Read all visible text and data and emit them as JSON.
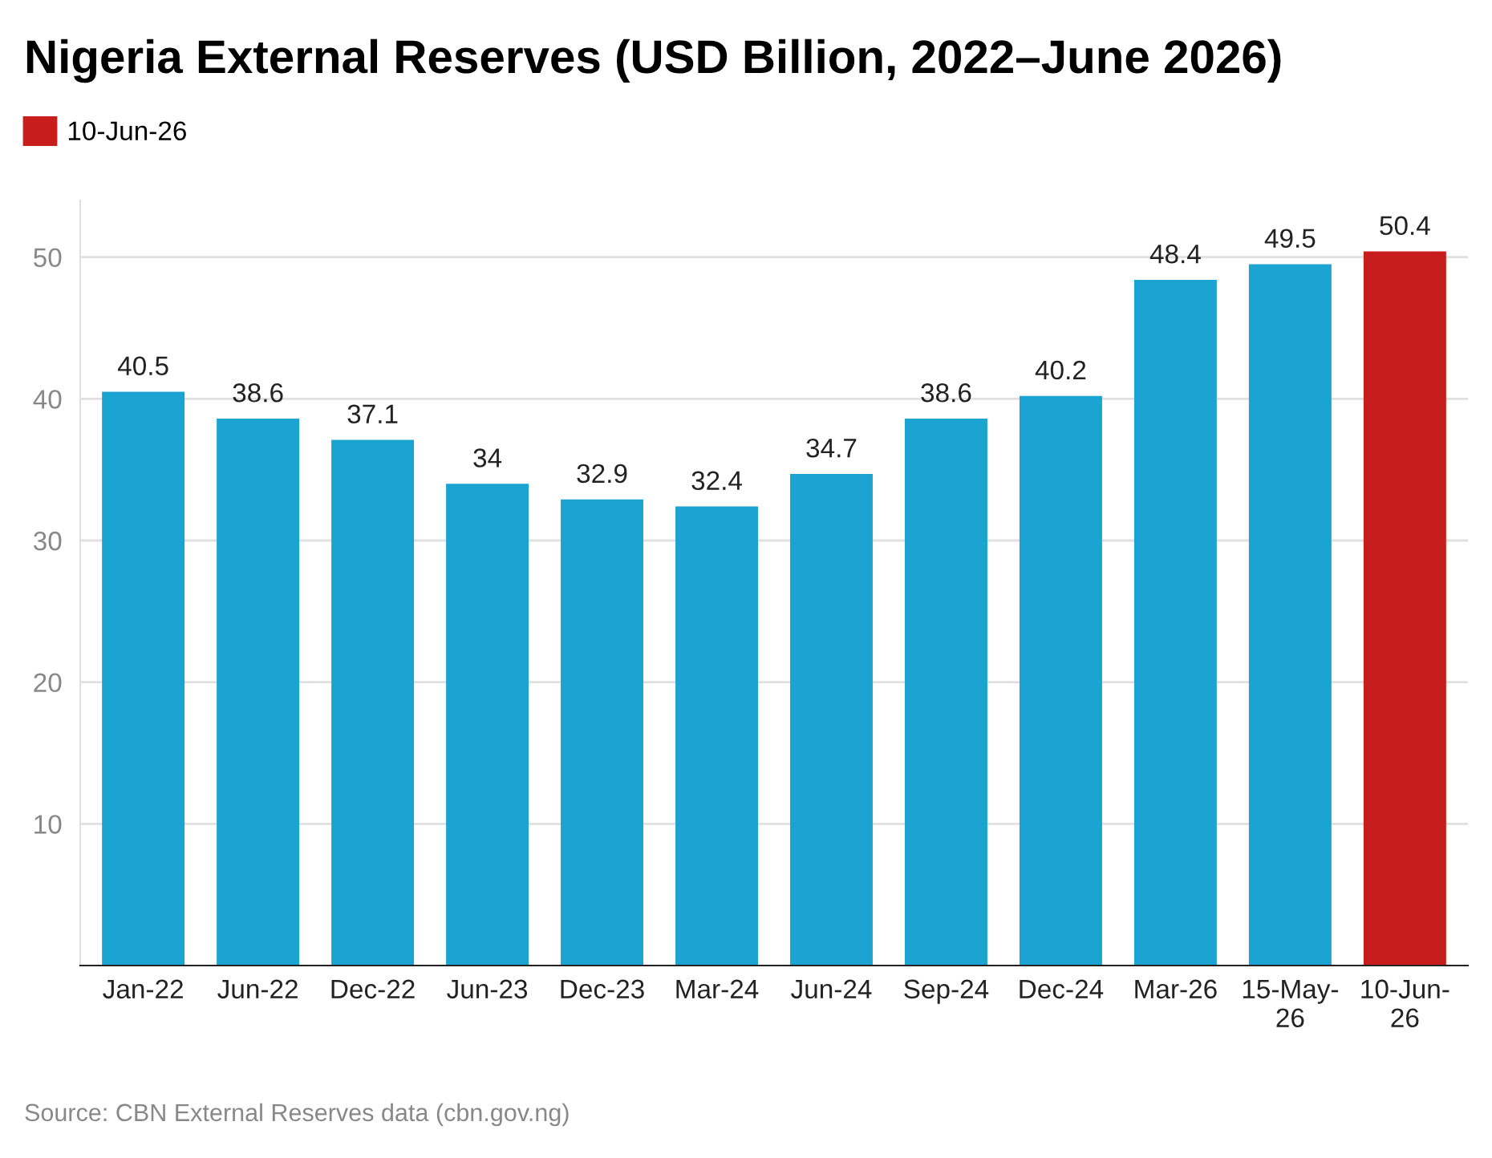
{
  "chart_data": {
    "type": "bar",
    "title": "Nigeria External Reserves (USD Billion, 2022–June 2026)",
    "categories": [
      "Jan-22",
      "Jun-22",
      "Dec-22",
      "Jun-23",
      "Dec-23",
      "Mar-24",
      "Jun-24",
      "Sep-24",
      "Dec-24",
      "Mar-26",
      "15-May-26",
      "10-Jun-26"
    ],
    "series": [
      {
        "color": "#1ba3d1",
        "values": [
          40.5,
          38.6,
          37.1,
          34,
          32.9,
          32.4,
          34.7,
          38.6,
          40.2,
          48.4,
          49.5,
          null
        ]
      },
      {
        "name": "10-Jun-26",
        "color": "#c71e1d",
        "values": [
          null,
          null,
          null,
          null,
          null,
          null,
          null,
          null,
          null,
          null,
          null,
          50.4
        ]
      }
    ],
    "ylim": [
      0,
      54
    ],
    "yticks": [
      10,
      20,
      30,
      40,
      50
    ],
    "grid": "y",
    "legend": "top left",
    "data_labels": true,
    "annotations": [
      "Source: CBN External Reserves data (cbn.gov.ng)"
    ]
  }
}
